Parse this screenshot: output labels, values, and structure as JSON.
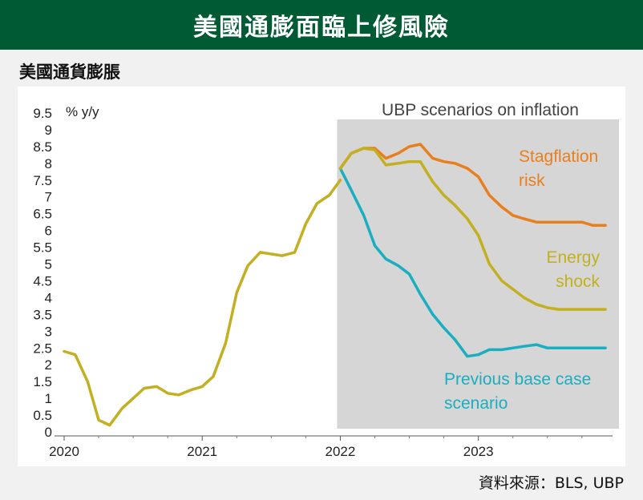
{
  "header": {
    "title": "美國通膨面臨上修風險"
  },
  "subtitle": "美國通貨膨脹",
  "source": "資料來源：BLS, UBP",
  "colors": {
    "header_bg": "#005a34",
    "shaded_region": "#d6d6d6",
    "history": "#c2b022",
    "stagflation": "#e87f1e",
    "energy": "#c2b022",
    "base": "#1aaec0"
  },
  "chart_data": {
    "type": "line",
    "ylabel": "% y/y",
    "ylim": [
      0,
      9.5
    ],
    "yticks": [
      0,
      0.5,
      1,
      1.5,
      2,
      2.5,
      3,
      3.5,
      4,
      4.5,
      5,
      5.5,
      6,
      6.5,
      7,
      7.5,
      8,
      8.5,
      9,
      9.5
    ],
    "ytick_labels": [
      "0",
      "0.5",
      "1",
      "1.5",
      "2",
      "2.5",
      "3",
      "3.5",
      "4",
      "4.5",
      "5",
      "5.5",
      "6",
      "6.5",
      "7",
      "7.5",
      "8",
      "8.5",
      "9",
      "9.5"
    ],
    "xlim": [
      2020.0,
      2023.96
    ],
    "xticks": [
      2020,
      2021,
      2022,
      2023
    ],
    "xtick_labels": [
      "2020",
      "2021",
      "2022",
      "2023"
    ],
    "scenario_region": {
      "start": 2022.0,
      "label": "UBP scenarios on inflation"
    },
    "history": {
      "x": [
        2020.0,
        2020.08,
        2020.17,
        2020.25,
        2020.33,
        2020.42,
        2020.5,
        2020.58,
        2020.67,
        2020.75,
        2020.83,
        2020.92,
        2021.0,
        2021.08,
        2021.17,
        2021.25,
        2021.33,
        2021.42,
        2021.5,
        2021.58,
        2021.67,
        2021.75,
        2021.83,
        2021.92,
        2022.0
      ],
      "y": [
        2.4,
        2.3,
        1.5,
        0.35,
        0.2,
        0.7,
        1.0,
        1.3,
        1.35,
        1.15,
        1.1,
        1.25,
        1.35,
        1.65,
        2.65,
        4.15,
        4.95,
        5.35,
        5.3,
        5.25,
        5.35,
        6.2,
        6.8,
        7.05,
        7.5
      ]
    },
    "series": [
      {
        "name": "Stagflation risk",
        "label_lines": [
          "Stagflation",
          "risk"
        ],
        "x": [
          2022.0,
          2022.08,
          2022.17,
          2022.25,
          2022.33,
          2022.42,
          2022.5,
          2022.58,
          2022.67,
          2022.75,
          2022.83,
          2022.92,
          2023.0,
          2023.08,
          2023.17,
          2023.25,
          2023.33,
          2023.42,
          2023.5,
          2023.58,
          2023.67,
          2023.75,
          2023.83,
          2023.92
        ],
        "y": [
          7.85,
          8.3,
          8.45,
          8.45,
          8.15,
          8.3,
          8.5,
          8.57,
          8.15,
          8.05,
          8.0,
          7.85,
          7.6,
          7.05,
          6.7,
          6.45,
          6.35,
          6.25,
          6.25,
          6.25,
          6.25,
          6.25,
          6.15,
          6.15
        ]
      },
      {
        "name": "Energy shock",
        "label_lines": [
          "Energy",
          "shock"
        ],
        "x": [
          2022.0,
          2022.08,
          2022.17,
          2022.25,
          2022.33,
          2022.42,
          2022.5,
          2022.58,
          2022.67,
          2022.75,
          2022.83,
          2022.92,
          2023.0,
          2023.08,
          2023.17,
          2023.25,
          2023.33,
          2023.42,
          2023.5,
          2023.58,
          2023.67,
          2023.75,
          2023.83,
          2023.92
        ],
        "y": [
          7.85,
          8.3,
          8.45,
          8.4,
          7.95,
          8.0,
          8.05,
          8.05,
          7.45,
          7.05,
          6.75,
          6.35,
          5.85,
          5.0,
          4.5,
          4.25,
          4.0,
          3.8,
          3.7,
          3.65,
          3.65,
          3.65,
          3.65,
          3.65
        ]
      },
      {
        "name": "Previous base case scenario",
        "label_lines": [
          "Previous base case",
          "scenario"
        ],
        "x": [
          2022.0,
          2022.08,
          2022.17,
          2022.25,
          2022.33,
          2022.42,
          2022.5,
          2022.58,
          2022.67,
          2022.75,
          2022.83,
          2022.92,
          2023.0,
          2023.08,
          2023.17,
          2023.25,
          2023.33,
          2023.42,
          2023.5,
          2023.58,
          2023.67,
          2023.75,
          2023.83,
          2023.92
        ],
        "y": [
          7.85,
          7.2,
          6.45,
          5.55,
          5.15,
          4.95,
          4.7,
          4.1,
          3.5,
          3.1,
          2.75,
          2.25,
          2.3,
          2.45,
          2.45,
          2.5,
          2.55,
          2.6,
          2.5,
          2.5,
          2.5,
          2.5,
          2.5,
          2.5
        ]
      }
    ]
  }
}
